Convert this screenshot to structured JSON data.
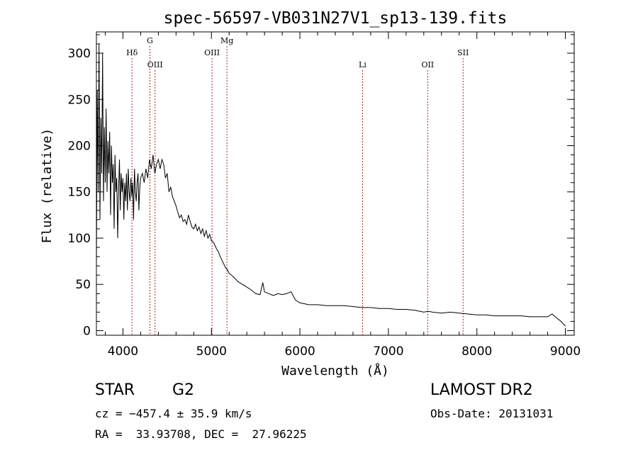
{
  "chart_data": {
    "type": "line",
    "title": "spec-56597-VB031N27V1_sp13-139.fits",
    "xlabel": "Wavelength (Å)",
    "ylabel": "Flux (relative)",
    "xlim": [
      3700,
      9100
    ],
    "ylim": [
      -5,
      323
    ],
    "xticks": [
      4000,
      5000,
      6000,
      7000,
      8000,
      9000
    ],
    "yticks": [
      0,
      50,
      100,
      150,
      200,
      250,
      300
    ],
    "grid": false,
    "series": [
      {
        "color": "#000000",
        "x": [
          3700,
          3710,
          3720,
          3730,
          3740,
          3750,
          3760,
          3770,
          3780,
          3790,
          3800,
          3810,
          3820,
          3830,
          3840,
          3850,
          3860,
          3870,
          3880,
          3890,
          3900,
          3910,
          3920,
          3930,
          3940,
          3950,
          3960,
          3970,
          3980,
          3990,
          4000,
          4010,
          4020,
          4030,
          4040,
          4050,
          4060,
          4070,
          4080,
          4090,
          4100,
          4110,
          4120,
          4130,
          4140,
          4150,
          4160,
          4170,
          4180,
          4190,
          4200,
          4220,
          4240,
          4260,
          4280,
          4300,
          4320,
          4340,
          4360,
          4380,
          4400,
          4420,
          4440,
          4460,
          4480,
          4500,
          4520,
          4540,
          4560,
          4580,
          4600,
          4620,
          4640,
          4660,
          4680,
          4700,
          4720,
          4740,
          4760,
          4780,
          4800,
          4820,
          4840,
          4860,
          4880,
          4900,
          4920,
          4940,
          4960,
          4980,
          5000,
          5020,
          5040,
          5060,
          5080,
          5100,
          5120,
          5140,
          5160,
          5180,
          5200,
          5250,
          5300,
          5350,
          5400,
          5450,
          5500,
          5550,
          5580,
          5600,
          5650,
          5700,
          5750,
          5800,
          5850,
          5900,
          5950,
          6000,
          6100,
          6200,
          6300,
          6400,
          6500,
          6600,
          6700,
          6800,
          6900,
          7000,
          7100,
          7200,
          7300,
          7400,
          7450,
          7500,
          7600,
          7700,
          7800,
          7900,
          8000,
          8100,
          8200,
          8300,
          8400,
          8500,
          8600,
          8700,
          8800,
          8850,
          8900,
          8950,
          9000
        ],
        "values": [
          70,
          260,
          150,
          310,
          120,
          230,
          170,
          300,
          140,
          220,
          160,
          240,
          150,
          205,
          170,
          215,
          125,
          200,
          160,
          180,
          110,
          190,
          150,
          165,
          100,
          150,
          185,
          130,
          170,
          150,
          165,
          120,
          160,
          140,
          170,
          130,
          175,
          150,
          140,
          165,
          145,
          160,
          120,
          175,
          150,
          140,
          160,
          170,
          130,
          155,
          165,
          170,
          160,
          175,
          165,
          185,
          175,
          190,
          170,
          180,
          185,
          175,
          185,
          180,
          165,
          170,
          150,
          155,
          145,
          140,
          135,
          128,
          122,
          125,
          118,
          120,
          115,
          125,
          118,
          112,
          110,
          115,
          108,
          112,
          105,
          110,
          102,
          108,
          100,
          104,
          97,
          96,
          92,
          88,
          85,
          80,
          76,
          72,
          68,
          66,
          62,
          58,
          53,
          50,
          47,
          44,
          40,
          39,
          52,
          42,
          40,
          38,
          40,
          39,
          40,
          42,
          33,
          30,
          28,
          28,
          27,
          27,
          27,
          26,
          25,
          25,
          24,
          24,
          23,
          23,
          22,
          20,
          21,
          20,
          19,
          20,
          19,
          18,
          17,
          17,
          16,
          16,
          16,
          16,
          15,
          15,
          15,
          18,
          14,
          10,
          5
        ]
      }
    ],
    "annotations": [
      {
        "label": "Hδ",
        "x": 4102,
        "level": "row1"
      },
      {
        "label": "G",
        "x": 4305,
        "level": "row0"
      },
      {
        "label": "OIII",
        "x": 4363,
        "level": "row2"
      },
      {
        "label": "OIII",
        "x": 5007,
        "level": "row1"
      },
      {
        "label": "Mg",
        "x": 5175,
        "level": "row0"
      },
      {
        "label": "Li",
        "x": 6708,
        "level": "row2"
      },
      {
        "label": "OII",
        "x": 7444,
        "level": "row2"
      },
      {
        "label": "SII",
        "x": 7844,
        "level": "row1"
      }
    ]
  },
  "footer": {
    "object_type": "STAR",
    "subclass": "G2",
    "cz": "cz = −457.4 ± 35.9 km/s",
    "radec": "RA =  33.93708, DEC =  27.96225",
    "survey": "LAMOST DR2",
    "obs_date": "Obs-Date: 20131031"
  }
}
